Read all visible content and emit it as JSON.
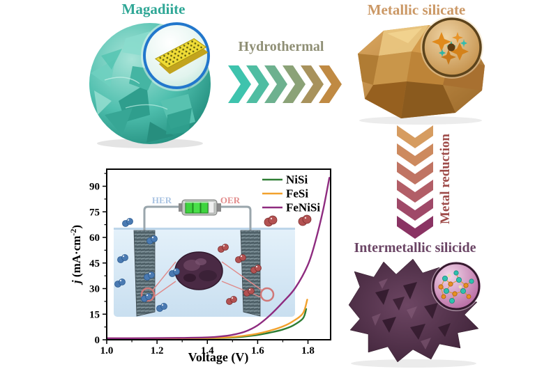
{
  "labels": {
    "magadiite": "Magadiite",
    "hydrothermal": "Hydrothermal",
    "metallic_silicate": "Metallic silicate",
    "metal_reduction": "Metal reduction",
    "intermetallic_silicide": "Intermetallic silicide"
  },
  "colors": {
    "magadiite_label": "#2fa796",
    "hydrothermal_label": "#8f8f75",
    "metallic_silicate_label": "#cb9865",
    "metal_reduction_label": "#9e4b49",
    "intermetallic_silicide_label": "#6b4565",
    "arrow_right": [
      "#3ec3ad",
      "#4fbda2",
      "#6db18f",
      "#8ba277",
      "#a8925c",
      "#c08a43"
    ],
    "arrow_down": [
      "#d69c60",
      "#cd8a5e",
      "#c07463",
      "#b25e67",
      "#9f4968",
      "#8a3363"
    ],
    "her_label": "#a9c3e2",
    "oer_label": "#e28c8c"
  },
  "chart_data": {
    "type": "line",
    "title": "",
    "xlabel": "Voltage (V)",
    "ylabel": "j (mA·cm⁻²)",
    "xlim": [
      1.0,
      1.89
    ],
    "ylim": [
      0,
      100
    ],
    "xticks": [
      1.0,
      1.2,
      1.4,
      1.6,
      1.8
    ],
    "xminor": [
      1.1,
      1.3,
      1.5,
      1.7,
      1.9
    ],
    "yticks": [
      0,
      15,
      30,
      45,
      60,
      75,
      90
    ],
    "yminor": [
      7.5,
      22.5,
      37.5,
      52.5,
      67.5,
      82.5,
      97.5
    ],
    "grid": false,
    "legend_position": "top-right",
    "series": [
      {
        "name": "NiSi",
        "color": "#2e7d33",
        "points": [
          [
            1.0,
            0.7
          ],
          [
            1.1,
            0.7
          ],
          [
            1.2,
            0.75
          ],
          [
            1.3,
            0.8
          ],
          [
            1.4,
            0.9
          ],
          [
            1.45,
            1.0
          ],
          [
            1.5,
            1.3
          ],
          [
            1.55,
            1.9
          ],
          [
            1.6,
            2.8
          ],
          [
            1.65,
            4.2
          ],
          [
            1.7,
            6.0
          ],
          [
            1.74,
            8.3
          ],
          [
            1.78,
            12.5
          ],
          [
            1.793,
            18.0
          ]
        ]
      },
      {
        "name": "FeSi",
        "color": "#f2a12d",
        "points": [
          [
            1.0,
            0.8
          ],
          [
            1.1,
            0.8
          ],
          [
            1.2,
            0.85
          ],
          [
            1.3,
            0.9
          ],
          [
            1.4,
            1.0
          ],
          [
            1.45,
            1.2
          ],
          [
            1.5,
            1.6
          ],
          [
            1.55,
            2.4
          ],
          [
            1.6,
            3.6
          ],
          [
            1.65,
            5.4
          ],
          [
            1.7,
            7.8
          ],
          [
            1.74,
            10.8
          ],
          [
            1.78,
            15.5
          ],
          [
            1.797,
            23.5
          ]
        ]
      },
      {
        "name": "FeNiSi",
        "color": "#8e2b7f",
        "points": [
          [
            1.0,
            0.9
          ],
          [
            1.1,
            0.9
          ],
          [
            1.2,
            1.0
          ],
          [
            1.3,
            1.1
          ],
          [
            1.4,
            1.4
          ],
          [
            1.45,
            1.9
          ],
          [
            1.5,
            2.9
          ],
          [
            1.55,
            4.8
          ],
          [
            1.6,
            8.5
          ],
          [
            1.65,
            14.5
          ],
          [
            1.7,
            22
          ],
          [
            1.75,
            30.5
          ],
          [
            1.8,
            44
          ],
          [
            1.83,
            58
          ],
          [
            1.86,
            76
          ],
          [
            1.885,
            95
          ]
        ]
      }
    ],
    "inset": {
      "her": "HER",
      "oer": "OER"
    }
  }
}
